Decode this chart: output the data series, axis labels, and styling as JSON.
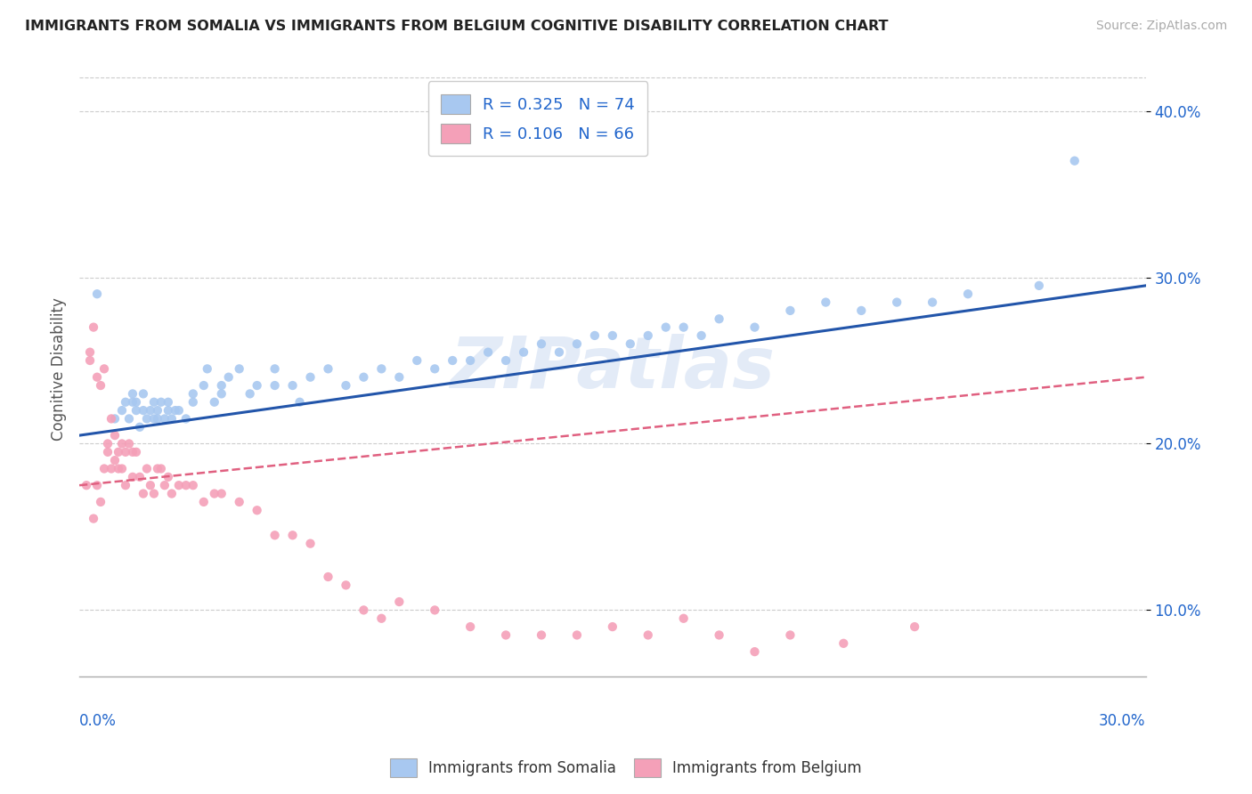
{
  "title": "IMMIGRANTS FROM SOMALIA VS IMMIGRANTS FROM BELGIUM COGNITIVE DISABILITY CORRELATION CHART",
  "source": "Source: ZipAtlas.com",
  "ylabel": "Cognitive Disability",
  "y_ticks": [
    0.1,
    0.2,
    0.3,
    0.4
  ],
  "y_tick_labels": [
    "10.0%",
    "20.0%",
    "30.0%",
    "40.0%"
  ],
  "xlim": [
    0.0,
    0.3
  ],
  "ylim": [
    0.06,
    0.43
  ],
  "somalia_color": "#a8c8f0",
  "belgium_color": "#f4a0b8",
  "somalia_line_color": "#2255aa",
  "belgium_line_color": "#e06080",
  "legend_somalia_label": "R = 0.325   N = 74",
  "legend_belgium_label": "R = 0.106   N = 66",
  "bottom_legend_somalia": "Immigrants from Somalia",
  "bottom_legend_belgium": "Immigrants from Belgium",
  "somalia_scatter_x": [
    0.005,
    0.01,
    0.012,
    0.013,
    0.014,
    0.015,
    0.015,
    0.016,
    0.016,
    0.017,
    0.018,
    0.018,
    0.019,
    0.02,
    0.021,
    0.021,
    0.022,
    0.022,
    0.023,
    0.024,
    0.025,
    0.025,
    0.026,
    0.027,
    0.028,
    0.03,
    0.032,
    0.032,
    0.035,
    0.036,
    0.038,
    0.04,
    0.04,
    0.042,
    0.045,
    0.048,
    0.05,
    0.055,
    0.055,
    0.06,
    0.062,
    0.065,
    0.07,
    0.075,
    0.08,
    0.085,
    0.09,
    0.095,
    0.1,
    0.105,
    0.11,
    0.115,
    0.12,
    0.125,
    0.13,
    0.135,
    0.14,
    0.145,
    0.15,
    0.155,
    0.16,
    0.165,
    0.17,
    0.175,
    0.18,
    0.19,
    0.2,
    0.21,
    0.22,
    0.23,
    0.24,
    0.25,
    0.27,
    0.28
  ],
  "somalia_scatter_y": [
    0.29,
    0.215,
    0.22,
    0.225,
    0.215,
    0.225,
    0.23,
    0.22,
    0.225,
    0.21,
    0.22,
    0.23,
    0.215,
    0.22,
    0.225,
    0.215,
    0.22,
    0.215,
    0.225,
    0.215,
    0.22,
    0.225,
    0.215,
    0.22,
    0.22,
    0.215,
    0.225,
    0.23,
    0.235,
    0.245,
    0.225,
    0.235,
    0.23,
    0.24,
    0.245,
    0.23,
    0.235,
    0.235,
    0.245,
    0.235,
    0.225,
    0.24,
    0.245,
    0.235,
    0.24,
    0.245,
    0.24,
    0.25,
    0.245,
    0.25,
    0.25,
    0.255,
    0.25,
    0.255,
    0.26,
    0.255,
    0.26,
    0.265,
    0.265,
    0.26,
    0.265,
    0.27,
    0.27,
    0.265,
    0.275,
    0.27,
    0.28,
    0.285,
    0.28,
    0.285,
    0.285,
    0.29,
    0.295,
    0.37
  ],
  "belgium_scatter_x": [
    0.002,
    0.003,
    0.003,
    0.004,
    0.004,
    0.005,
    0.005,
    0.006,
    0.006,
    0.007,
    0.007,
    0.008,
    0.008,
    0.009,
    0.009,
    0.01,
    0.01,
    0.011,
    0.011,
    0.012,
    0.012,
    0.013,
    0.013,
    0.014,
    0.015,
    0.015,
    0.016,
    0.017,
    0.018,
    0.019,
    0.02,
    0.021,
    0.022,
    0.023,
    0.024,
    0.025,
    0.026,
    0.028,
    0.03,
    0.032,
    0.035,
    0.038,
    0.04,
    0.045,
    0.05,
    0.055,
    0.06,
    0.065,
    0.07,
    0.075,
    0.08,
    0.085,
    0.09,
    0.1,
    0.11,
    0.12,
    0.13,
    0.14,
    0.15,
    0.16,
    0.17,
    0.18,
    0.19,
    0.2,
    0.215,
    0.235
  ],
  "belgium_scatter_y": [
    0.175,
    0.255,
    0.25,
    0.27,
    0.155,
    0.175,
    0.24,
    0.235,
    0.165,
    0.245,
    0.185,
    0.195,
    0.2,
    0.215,
    0.185,
    0.205,
    0.19,
    0.195,
    0.185,
    0.2,
    0.185,
    0.175,
    0.195,
    0.2,
    0.195,
    0.18,
    0.195,
    0.18,
    0.17,
    0.185,
    0.175,
    0.17,
    0.185,
    0.185,
    0.175,
    0.18,
    0.17,
    0.175,
    0.175,
    0.175,
    0.165,
    0.17,
    0.17,
    0.165,
    0.16,
    0.145,
    0.145,
    0.14,
    0.12,
    0.115,
    0.1,
    0.095,
    0.105,
    0.1,
    0.09,
    0.085,
    0.085,
    0.085,
    0.09,
    0.085,
    0.095,
    0.085,
    0.075,
    0.085,
    0.08,
    0.09
  ]
}
